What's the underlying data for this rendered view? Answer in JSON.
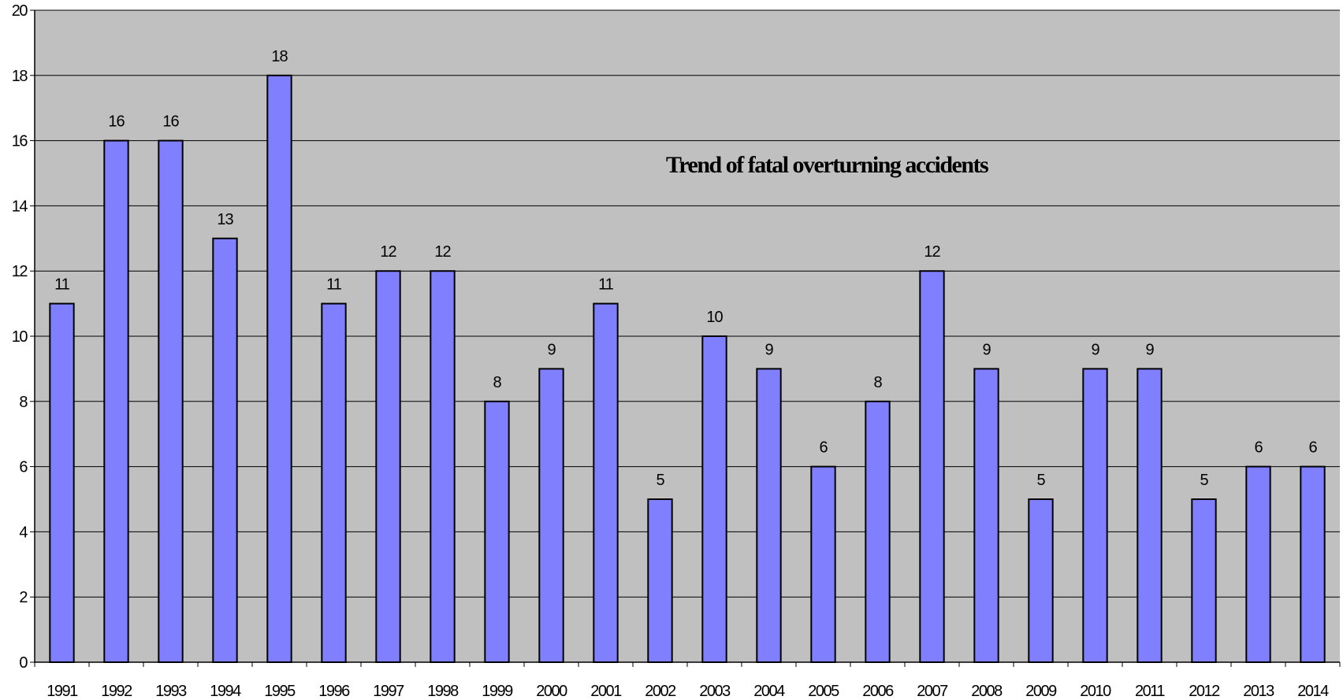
{
  "chart_data": {
    "type": "bar",
    "title": "Trend of fatal overturning accidents",
    "xlabel": "",
    "ylabel": "",
    "categories": [
      "1991",
      "1992",
      "1993",
      "1994",
      "1995",
      "1996",
      "1997",
      "1998",
      "1999",
      "2000",
      "2001",
      "2002",
      "2003",
      "2004",
      "2005",
      "2006",
      "2007",
      "2008",
      "2009",
      "2010",
      "2011",
      "2012",
      "2013",
      "2014"
    ],
    "values": [
      11,
      16,
      16,
      13,
      18,
      11,
      12,
      12,
      8,
      9,
      11,
      5,
      10,
      9,
      6,
      8,
      12,
      9,
      5,
      9,
      9,
      5,
      6,
      6
    ],
    "ylim": [
      0,
      20
    ],
    "yticks": [
      0,
      2,
      4,
      6,
      8,
      10,
      12,
      14,
      16,
      18,
      20
    ],
    "grid": true,
    "legend": "none",
    "data_labels": true,
    "colors": {
      "bar_fill": "#8080FF",
      "bar_stroke": "#000000",
      "plot_background": "#C0C0C0",
      "gridline": "#000000"
    }
  }
}
